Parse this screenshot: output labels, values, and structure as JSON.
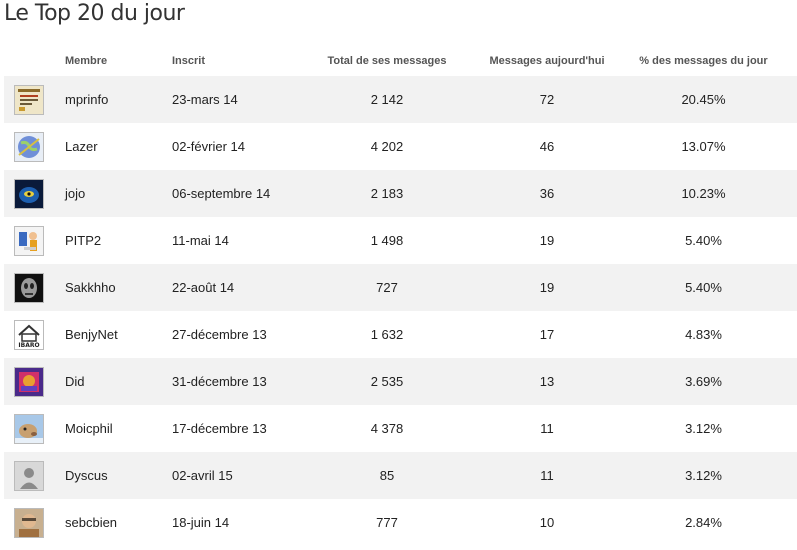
{
  "title": "Le Top 20 du jour",
  "columns": {
    "member": "Membre",
    "joined": "Inscrit",
    "total": "Total de ses messages",
    "today": "Messages aujourd'hui",
    "pct": "% des messages du jour"
  },
  "rows": [
    {
      "member": "mprinfo",
      "joined": "23-mars 14",
      "total": "2 142",
      "today": "72",
      "pct": "20.45%",
      "avatar_icon": "certificate-avatar-icon"
    },
    {
      "member": "Lazer",
      "joined": "02-février 14",
      "total": "4 202",
      "today": "46",
      "pct": "13.07%",
      "avatar_icon": "globe-avatar-icon"
    },
    {
      "member": "jojo",
      "joined": "06-septembre 14",
      "total": "2 183",
      "today": "36",
      "pct": "10.23%",
      "avatar_icon": "blue-face-avatar-icon"
    },
    {
      "member": "PITP2",
      "joined": "11-mai 14",
      "total": "1 498",
      "today": "19",
      "pct": "5.40%",
      "avatar_icon": "cartoon-avatar-icon"
    },
    {
      "member": "Sakkhho",
      "joined": "22-août 14",
      "total": "727",
      "today": "19",
      "pct": "5.40%",
      "avatar_icon": "dark-mask-avatar-icon"
    },
    {
      "member": "BenjyNet",
      "joined": "27-décembre 13",
      "total": "1 632",
      "today": "17",
      "pct": "4.83%",
      "avatar_icon": "house-logo-avatar-icon",
      "avatar_text": "IBARO"
    },
    {
      "member": "Did",
      "joined": "31-décembre 13",
      "total": "2 535",
      "today": "13",
      "pct": "3.69%",
      "avatar_icon": "colorful-painting-avatar-icon"
    },
    {
      "member": "Moicphil",
      "joined": "17-décembre 13",
      "total": "4 378",
      "today": "11",
      "pct": "3.12%",
      "avatar_icon": "animal-avatar-icon"
    },
    {
      "member": "Dyscus",
      "joined": "02-avril 15",
      "total": "85",
      "today": "11",
      "pct": "3.12%",
      "avatar_icon": "default-user-avatar-icon"
    },
    {
      "member": "sebcbien",
      "joined": "18-juin 14",
      "total": "777",
      "today": "10",
      "pct": "2.84%",
      "avatar_icon": "portrait-avatar-icon"
    }
  ]
}
